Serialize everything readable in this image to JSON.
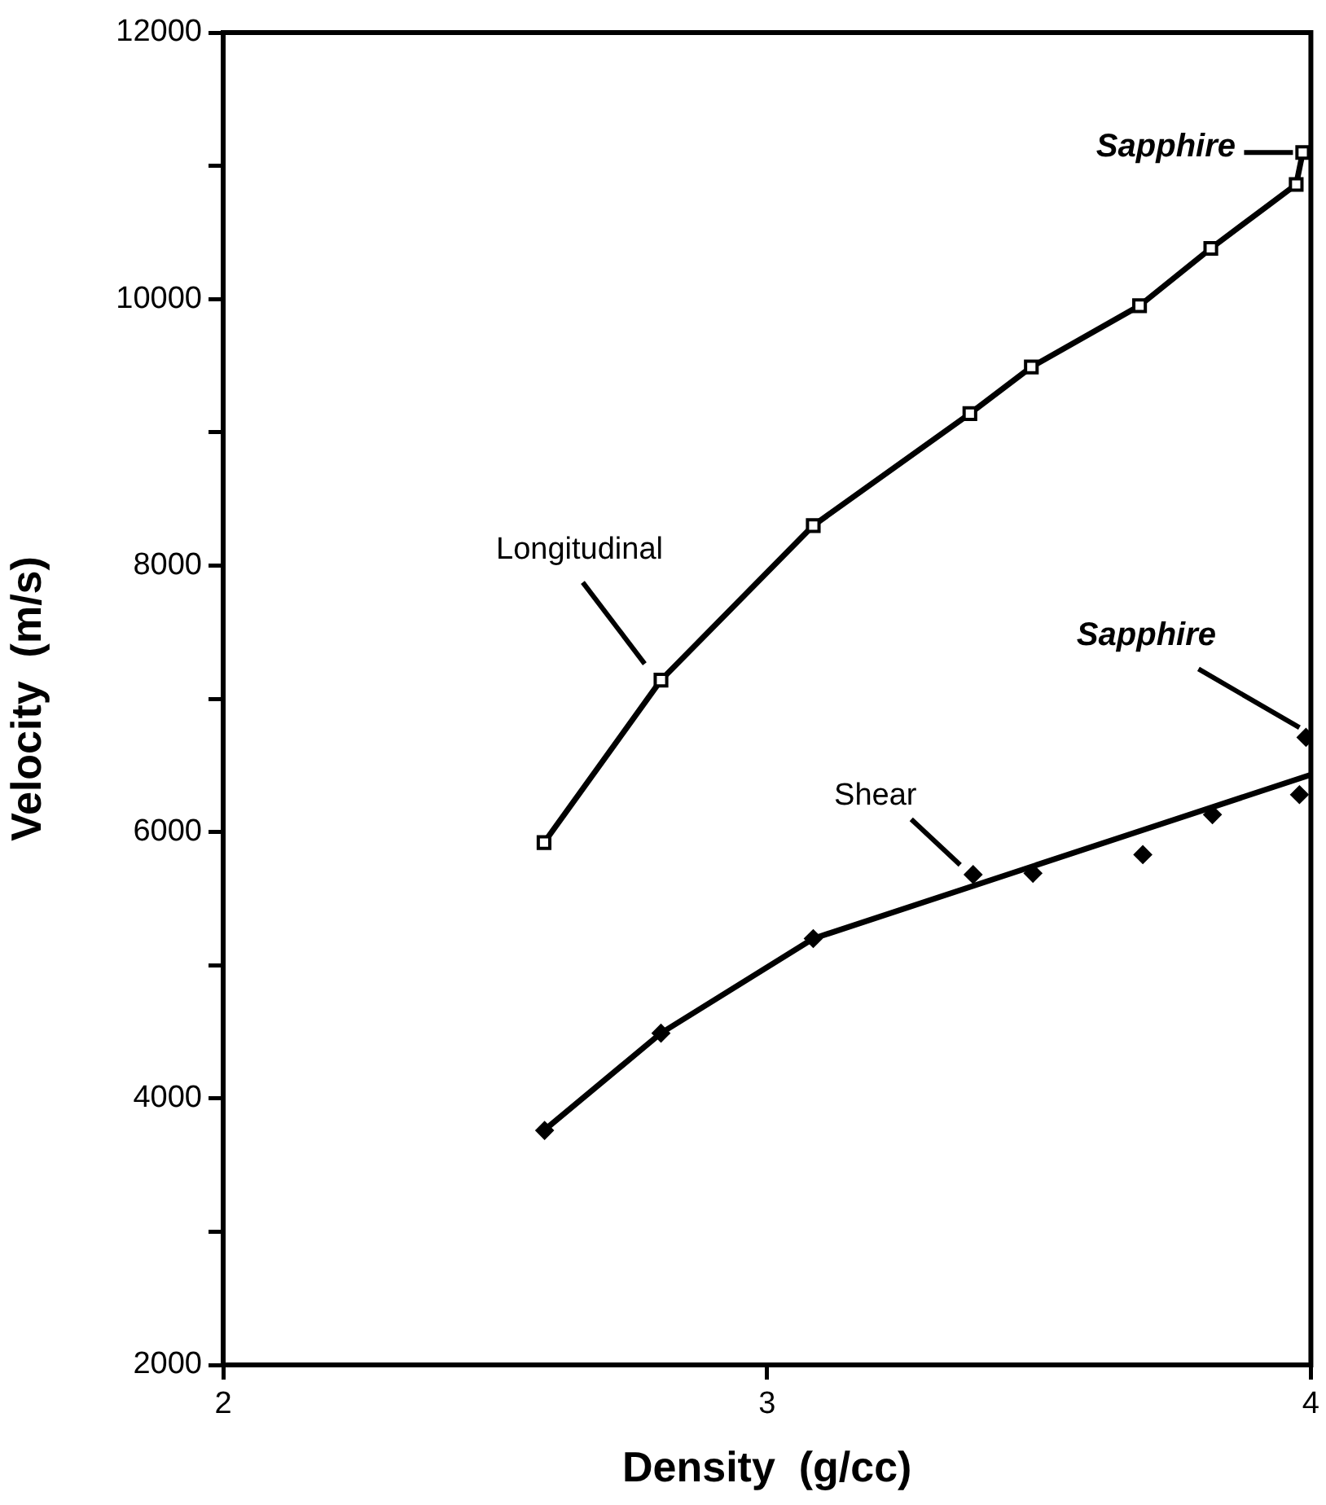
{
  "chart_data": {
    "type": "line",
    "xlabel": "Density  (g/cc)",
    "ylabel": "Velocity  (m/s)",
    "xlim": [
      2,
      4
    ],
    "xticks": [
      2,
      3,
      4
    ],
    "ylim": [
      2000,
      12000
    ],
    "yticks": [
      2000,
      {
        "value": 3000,
        "label": null
      },
      4000,
      {
        "value": 5000,
        "label": null
      },
      6000,
      {
        "value": 7000,
        "label": null
      },
      8000,
      {
        "value": 9000,
        "label": null
      },
      10000,
      {
        "value": 11000,
        "label": null
      },
      12000
    ],
    "grid": false,
    "legend": false,
    "series": [
      {
        "name": "Longitudinal",
        "color": "#000000",
        "marker": "square",
        "x": [
          2.59,
          2.805,
          3.085,
          3.373,
          3.486,
          3.685,
          3.816,
          3.973,
          3.985
        ],
        "values": [
          5920,
          7140,
          8300,
          9140,
          9490,
          9950,
          10380,
          10860,
          11100
        ]
      },
      {
        "color": "#000000",
        "marker": "none",
        "x": [
          2.59,
          2.805,
          3.085,
          4.0
        ],
        "values": [
          3760,
          4490,
          5200,
          6430
        ]
      },
      {
        "name": "Shear",
        "type": "scatter",
        "color": "#000000",
        "marker": "diamond",
        "x": [
          2.591,
          2.805,
          3.085,
          3.379,
          3.489,
          3.691,
          3.819,
          3.979,
          3.991
        ],
        "values": [
          3760,
          4490,
          5200,
          5680,
          5690,
          5830,
          6130,
          6280,
          6710
        ]
      }
    ],
    "annotations": [
      {
        "text": "Sapphire",
        "x": 3.985,
        "y": 11100
      },
      {
        "text": "Sapphire",
        "x": 3.991,
        "y": 6710
      }
    ]
  }
}
